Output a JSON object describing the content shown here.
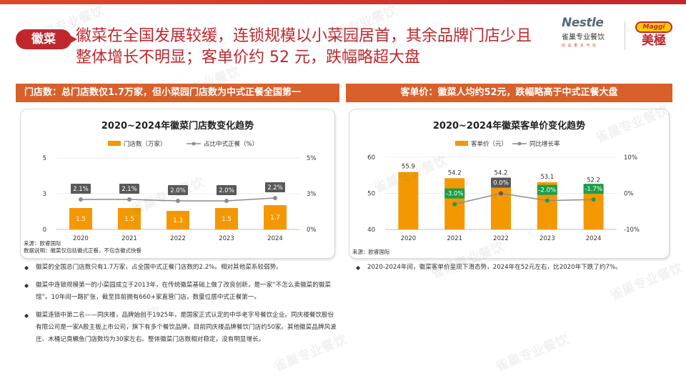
{
  "header": {
    "badge": "徽菜",
    "headline": "徽菜在全国发展较缓，连锁规模以小菜园居首，其余品牌门店少且整体增长不明显；客单价约 52 元，跌幅略超大盘",
    "logo_nestle": "Nestle",
    "logo_nestle_sub": "雀巢专业餐饮",
    "logo_nestle_tag": "创 品 重 多 可 信",
    "logo_maggi_top": "Maggi",
    "logo_maggi_bottom": "美極"
  },
  "left_section": {
    "header": "门店数：总门店数仅1.7万家，但小菜园门店数为中式正餐全国第一",
    "note_source": "来源：欧睿国际",
    "note_desc": "数据说明：徽菜仅包括徽式正餐，不包含徽式快餐",
    "bullets": [
      "徽菜的全国总门店数只有1.7万家，占全国中式正餐门店数的2.2%。相对其他菜系较弱势。",
      "徽菜中连锁规模第一的小菜园成立于2013年，在传统徽菜基础上做了改良创新，是一家“不怎么卖徽菜的徽菜馆”。10年间一路扩张，截至目前拥有660+家直营门店，数量位居中式正餐第一。",
      "徽菜连锁中第二名——同庆楼，品牌始创于1925年，是国家正式认定的中华老字号餐饮企业。同庆楼餐饮股份有限公司是一家A股主板上市公司，旗下有多个餐饮品牌，目前同庆楼品牌餐饮门店约50家。其他徽菜品牌风波庄、木桶记臭鳜鱼门店数均为30家左右。整体徽菜门店数相对稳定，没有明显增长。"
    ]
  },
  "right_section": {
    "header": "客单价：徽菜人均约52元，跌幅略高于中式正餐大盘",
    "note_source": "来源：欧睿国际",
    "bullets": [
      "2020-2024年间，徽菜客单价呈现下滑态势，2024年在52元左右，比2020年下跌了约7%。"
    ]
  },
  "colors": {
    "accent": "#c0272d",
    "orange": "#f39800",
    "section": "#d9602b",
    "line": "#8c8c8c",
    "green": "#1a9e4a"
  },
  "watermark": "雀巢专业餐饮",
  "chart_data": [
    {
      "type": "bar",
      "title": "2020~2024年徽菜门店数变化趋势",
      "categories": [
        "2020",
        "2021",
        "2022",
        "2023",
        "2024"
      ],
      "series": [
        {
          "name": "门店数（万家）",
          "values": [
            1.5,
            1.5,
            1.3,
            1.5,
            1.7
          ],
          "labels": [
            "1.5",
            "1.5",
            "1.3",
            "1.5",
            "1.7"
          ],
          "axis": "left",
          "kind": "bar"
        },
        {
          "name": "占比中式正餐（%）",
          "values": [
            2.1,
            2.1,
            2.0,
            2.0,
            2.2
          ],
          "labels": [
            "2.1%",
            "2.1%",
            "2.0%",
            "2.0%",
            "2.2%"
          ],
          "axis": "right",
          "kind": "line"
        }
      ],
      "ylim": [
        0,
        5
      ],
      "yticks": [
        "0",
        "3",
        "5"
      ],
      "y2lim": [
        0,
        5
      ],
      "y2ticks": [
        "0%",
        "3%",
        "5%"
      ],
      "legend": "top"
    },
    {
      "type": "bar",
      "title": "2020~2024年徽菜客单价变化趋势",
      "categories": [
        "2020",
        "2021",
        "2022",
        "2023",
        "2024"
      ],
      "series": [
        {
          "name": "客单价（元）",
          "values": [
            55.9,
            54.2,
            54.2,
            53.1,
            52.2
          ],
          "labels": [
            "55.9",
            "54.2",
            "54.2",
            "53.1",
            "52.2"
          ],
          "axis": "left",
          "kind": "bar"
        },
        {
          "name": "同比增长率",
          "values": [
            null,
            -3.0,
            0.0,
            -2.0,
            -1.7
          ],
          "labels": [
            "",
            "-3.0%",
            "0.0%",
            "-2.0%",
            "-1.7%"
          ],
          "axis": "right",
          "kind": "line"
        }
      ],
      "ylim": [
        40,
        60
      ],
      "yticks": [
        "40",
        "50",
        "60"
      ],
      "y2lim": [
        -10,
        10
      ],
      "y2ticks": [
        "-10%",
        "0%",
        "10%"
      ],
      "legend": "top"
    }
  ]
}
